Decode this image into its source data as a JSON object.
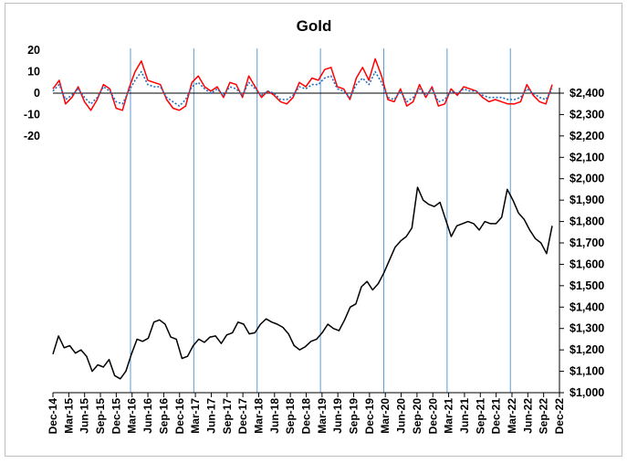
{
  "chart_data": {
    "type": "line",
    "title": "Gold",
    "x_ticks": [
      "Dec-14",
      "Mar-15",
      "Jun-15",
      "Sep-15",
      "Dec-15",
      "Mar-16",
      "Jun-16",
      "Sep-16",
      "Dec-16",
      "Mar-17",
      "Jun-17",
      "Sep-17",
      "Dec-17",
      "Mar-18",
      "Jun-18",
      "Sep-18",
      "Dec-18",
      "Mar-19",
      "Jun-19",
      "Sep-19",
      "Dec-19",
      "Mar-20",
      "Jun-20",
      "Sep-20",
      "Dec-20",
      "Mar-21",
      "Jun-21",
      "Sep-21",
      "Dec-21",
      "Mar-22",
      "Jun-22",
      "Sep-22",
      "Dec-22"
    ],
    "vertical_gridlines_at": [
      "Dec-15",
      "Dec-16",
      "Dec-17",
      "Dec-18",
      "Dec-19",
      "Dec-20",
      "Dec-21"
    ],
    "upper_axis": {
      "ticks": [
        "20",
        "10",
        "0",
        "-10",
        "-20"
      ],
      "values": [
        20,
        10,
        0,
        -10,
        -20
      ]
    },
    "right_axis": {
      "ylim": [
        1000,
        2400
      ],
      "ticks": [
        "$1,000",
        "$1,100",
        "$1,200",
        "$1,300",
        "$1,400",
        "$1,500",
        "$1,600",
        "$1,700",
        "$1,800",
        "$1,900",
        "$2,000",
        "$2,100",
        "$2,200",
        "$2,300",
        "$2,400"
      ],
      "values": [
        1000,
        1100,
        1200,
        1300,
        1400,
        1500,
        1600,
        1700,
        1800,
        1900,
        2000,
        2100,
        2200,
        2300,
        2400
      ]
    },
    "series": [
      {
        "color": "#000000",
        "axis": "right",
        "points": [
          [
            0,
            1180
          ],
          [
            1,
            1265
          ],
          [
            2,
            1210
          ],
          [
            3,
            1220
          ],
          [
            4,
            1185
          ],
          [
            5,
            1200
          ],
          [
            6,
            1170
          ],
          [
            7,
            1100
          ],
          [
            8,
            1130
          ],
          [
            9,
            1120
          ],
          [
            10,
            1155
          ],
          [
            11,
            1080
          ],
          [
            12,
            1065
          ],
          [
            13,
            1100
          ],
          [
            14,
            1180
          ],
          [
            15,
            1250
          ],
          [
            16,
            1240
          ],
          [
            17,
            1255
          ],
          [
            18,
            1330
          ],
          [
            19,
            1340
          ],
          [
            20,
            1320
          ],
          [
            21,
            1260
          ],
          [
            22,
            1250
          ],
          [
            23,
            1160
          ],
          [
            24,
            1170
          ],
          [
            25,
            1220
          ],
          [
            26,
            1250
          ],
          [
            27,
            1235
          ],
          [
            28,
            1260
          ],
          [
            29,
            1265
          ],
          [
            30,
            1230
          ],
          [
            31,
            1270
          ],
          [
            32,
            1280
          ],
          [
            33,
            1330
          ],
          [
            34,
            1320
          ],
          [
            35,
            1275
          ],
          [
            36,
            1280
          ],
          [
            37,
            1320
          ],
          [
            38,
            1345
          ],
          [
            39,
            1330
          ],
          [
            40,
            1320
          ],
          [
            41,
            1305
          ],
          [
            42,
            1275
          ],
          [
            43,
            1220
          ],
          [
            44,
            1200
          ],
          [
            45,
            1215
          ],
          [
            46,
            1240
          ],
          [
            47,
            1250
          ],
          [
            48,
            1280
          ],
          [
            49,
            1320
          ],
          [
            50,
            1300
          ],
          [
            51,
            1290
          ],
          [
            52,
            1340
          ],
          [
            53,
            1400
          ],
          [
            54,
            1415
          ],
          [
            55,
            1495
          ],
          [
            56,
            1520
          ],
          [
            57,
            1480
          ],
          [
            58,
            1510
          ],
          [
            59,
            1560
          ],
          [
            60,
            1620
          ],
          [
            61,
            1680
          ],
          [
            62,
            1710
          ],
          [
            63,
            1730
          ],
          [
            64,
            1770
          ],
          [
            65,
            1960
          ],
          [
            66,
            1900
          ],
          [
            67,
            1880
          ],
          [
            68,
            1870
          ],
          [
            69,
            1890
          ],
          [
            70,
            1810
          ],
          [
            71,
            1730
          ],
          [
            72,
            1780
          ],
          [
            73,
            1790
          ],
          [
            74,
            1800
          ],
          [
            75,
            1790
          ],
          [
            76,
            1760
          ],
          [
            77,
            1800
          ],
          [
            78,
            1790
          ],
          [
            79,
            1790
          ],
          [
            80,
            1820
          ],
          [
            81,
            1950
          ],
          [
            82,
            1900
          ],
          [
            83,
            1840
          ],
          [
            84,
            1810
          ],
          [
            85,
            1760
          ],
          [
            86,
            1720
          ],
          [
            87,
            1700
          ],
          [
            88,
            1650
          ],
          [
            89,
            1780
          ]
        ]
      },
      {
        "color": "#ff0000",
        "axis": "upper",
        "points": [
          [
            0,
            2
          ],
          [
            1,
            6
          ],
          [
            2,
            -5
          ],
          [
            3,
            -2
          ],
          [
            4,
            3
          ],
          [
            5,
            -4
          ],
          [
            6,
            -8
          ],
          [
            7,
            -3
          ],
          [
            8,
            4
          ],
          [
            9,
            2
          ],
          [
            10,
            -7
          ],
          [
            11,
            -8
          ],
          [
            12,
            2
          ],
          [
            13,
            10
          ],
          [
            14,
            15
          ],
          [
            15,
            6
          ],
          [
            16,
            5
          ],
          [
            17,
            4
          ],
          [
            18,
            -3
          ],
          [
            19,
            -7
          ],
          [
            20,
            -8
          ],
          [
            21,
            -6
          ],
          [
            22,
            5
          ],
          [
            23,
            8
          ],
          [
            24,
            3
          ],
          [
            25,
            1
          ],
          [
            26,
            3
          ],
          [
            27,
            -2
          ],
          [
            28,
            5
          ],
          [
            29,
            4
          ],
          [
            30,
            -2
          ],
          [
            31,
            8
          ],
          [
            32,
            3
          ],
          [
            33,
            -2
          ],
          [
            34,
            1
          ],
          [
            35,
            -1
          ],
          [
            36,
            -4
          ],
          [
            37,
            -5
          ],
          [
            38,
            -2
          ],
          [
            39,
            5
          ],
          [
            40,
            3
          ],
          [
            41,
            7
          ],
          [
            42,
            6
          ],
          [
            43,
            11
          ],
          [
            44,
            12
          ],
          [
            45,
            3
          ],
          [
            46,
            2
          ],
          [
            47,
            -3
          ],
          [
            48,
            7
          ],
          [
            49,
            12
          ],
          [
            50,
            6
          ],
          [
            51,
            16
          ],
          [
            52,
            8
          ],
          [
            53,
            -3
          ],
          [
            54,
            -4
          ],
          [
            55,
            2
          ],
          [
            56,
            -6
          ],
          [
            57,
            -4
          ],
          [
            58,
            4
          ],
          [
            59,
            -2
          ],
          [
            60,
            3
          ],
          [
            61,
            -6
          ],
          [
            62,
            -5
          ],
          [
            63,
            2
          ],
          [
            64,
            -1
          ],
          [
            65,
            3
          ],
          [
            66,
            2
          ],
          [
            67,
            1
          ],
          [
            68,
            -2
          ],
          [
            69,
            -4
          ],
          [
            70,
            -3
          ],
          [
            71,
            -4
          ],
          [
            72,
            -5
          ],
          [
            73,
            -5
          ],
          [
            74,
            -4
          ],
          [
            75,
            4
          ],
          [
            76,
            -1
          ],
          [
            77,
            -4
          ],
          [
            78,
            -5
          ],
          [
            79,
            4
          ]
        ]
      },
      {
        "color": "#1f6fbf",
        "dash": "dotted",
        "axis": "upper",
        "points": [
          [
            0,
            1
          ],
          [
            1,
            4
          ],
          [
            2,
            -3
          ],
          [
            3,
            -1
          ],
          [
            4,
            2
          ],
          [
            5,
            -2
          ],
          [
            6,
            -5
          ],
          [
            7,
            -2
          ],
          [
            8,
            3
          ],
          [
            9,
            1
          ],
          [
            10,
            -4
          ],
          [
            11,
            -5
          ],
          [
            12,
            1
          ],
          [
            13,
            6
          ],
          [
            14,
            10
          ],
          [
            15,
            4
          ],
          [
            16,
            3
          ],
          [
            17,
            3
          ],
          [
            18,
            -2
          ],
          [
            19,
            -4
          ],
          [
            20,
            -6
          ],
          [
            21,
            -3
          ],
          [
            22,
            3
          ],
          [
            23,
            5
          ],
          [
            24,
            2
          ],
          [
            25,
            0
          ],
          [
            26,
            2
          ],
          [
            27,
            -1
          ],
          [
            28,
            3
          ],
          [
            29,
            2
          ],
          [
            30,
            -1
          ],
          [
            31,
            5
          ],
          [
            32,
            2
          ],
          [
            33,
            -1
          ],
          [
            34,
            1
          ],
          [
            35,
            0
          ],
          [
            36,
            -3
          ],
          [
            37,
            -3
          ],
          [
            38,
            -1
          ],
          [
            39,
            3
          ],
          [
            40,
            2
          ],
          [
            41,
            4
          ],
          [
            42,
            4
          ],
          [
            43,
            7
          ],
          [
            44,
            8
          ],
          [
            45,
            2
          ],
          [
            46,
            1
          ],
          [
            47,
            -2
          ],
          [
            48,
            4
          ],
          [
            49,
            7
          ],
          [
            50,
            4
          ],
          [
            51,
            10
          ],
          [
            52,
            5
          ],
          [
            53,
            -2
          ],
          [
            54,
            -3
          ],
          [
            55,
            1
          ],
          [
            56,
            -4
          ],
          [
            57,
            -2
          ],
          [
            58,
            2
          ],
          [
            59,
            -1
          ],
          [
            60,
            2
          ],
          [
            61,
            -4
          ],
          [
            62,
            -3
          ],
          [
            63,
            1
          ],
          [
            64,
            0
          ],
          [
            65,
            2
          ],
          [
            66,
            1
          ],
          [
            67,
            1
          ],
          [
            68,
            -1
          ],
          [
            69,
            -2
          ],
          [
            70,
            -2
          ],
          [
            71,
            -2
          ],
          [
            72,
            -3
          ],
          [
            73,
            -3
          ],
          [
            74,
            -2
          ],
          [
            75,
            2
          ],
          [
            76,
            0
          ],
          [
            77,
            -2
          ],
          [
            78,
            -3
          ],
          [
            79,
            2
          ]
        ]
      }
    ],
    "grid": false,
    "colors": {
      "gridline": "#5b9bd5",
      "frame": "#bfbfbf"
    }
  }
}
